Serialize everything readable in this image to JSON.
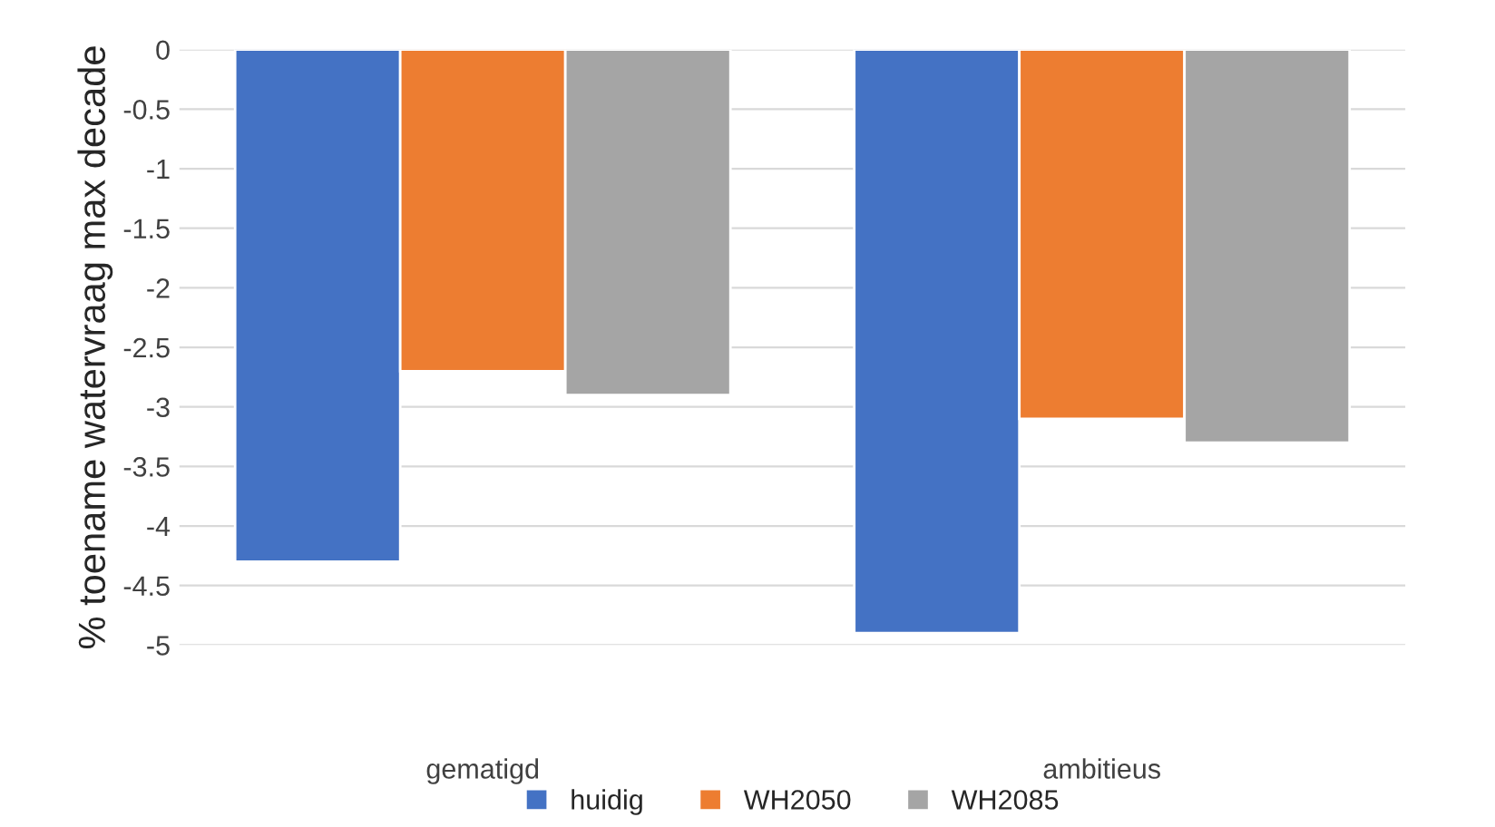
{
  "chart_data": {
    "type": "bar",
    "ylabel": "% toename watervraag max decade",
    "categories": [
      "gematigd",
      "ambitieus"
    ],
    "series": [
      {
        "name": "huidig",
        "color": "#4472c4",
        "values": [
          -4.3,
          -4.9
        ]
      },
      {
        "name": "WH2050",
        "color": "#ed7d31",
        "values": [
          -2.7,
          -3.1
        ]
      },
      {
        "name": "WH2085",
        "color": "#a5a5a5",
        "values": [
          -2.9,
          -3.3
        ]
      }
    ],
    "ylim": [
      -5,
      0
    ],
    "yticks": [
      0,
      -0.5,
      -1,
      -1.5,
      -2,
      -2.5,
      -3,
      -3.5,
      -4,
      -4.5,
      -5
    ],
    "grid": "y",
    "legend": "bottom"
  }
}
